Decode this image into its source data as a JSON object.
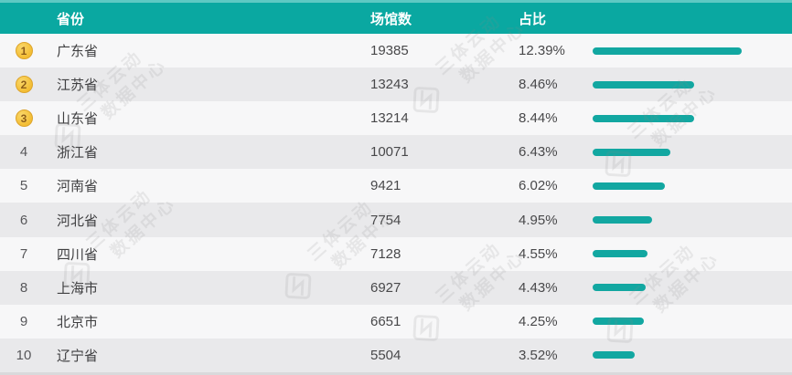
{
  "header": {
    "columns": [
      {
        "label": "省份"
      },
      {
        "label": "场馆数"
      },
      {
        "label": "占比"
      }
    ]
  },
  "rows": [
    {
      "rank": "1",
      "medal": true,
      "province": "广东省",
      "venues": "19385",
      "share": "12.39%",
      "share_value": 12.39
    },
    {
      "rank": "2",
      "medal": true,
      "province": "江苏省",
      "venues": "13243",
      "share": "8.46%",
      "share_value": 8.46
    },
    {
      "rank": "3",
      "medal": true,
      "province": "山东省",
      "venues": "13214",
      "share": "8.44%",
      "share_value": 8.44
    },
    {
      "rank": "4",
      "medal": false,
      "province": "浙江省",
      "venues": "10071",
      "share": "6.43%",
      "share_value": 6.43
    },
    {
      "rank": "5",
      "medal": false,
      "province": "河南省",
      "venues": "9421",
      "share": "6.02%",
      "share_value": 6.02
    },
    {
      "rank": "6",
      "medal": false,
      "province": "河北省",
      "venues": "7754",
      "share": "4.95%",
      "share_value": 4.95
    },
    {
      "rank": "7",
      "medal": false,
      "province": "四川省",
      "venues": "7128",
      "share": "4.55%",
      "share_value": 4.55
    },
    {
      "rank": "8",
      "medal": false,
      "province": "上海市",
      "venues": "6927",
      "share": "4.43%",
      "share_value": 4.43
    },
    {
      "rank": "9",
      "medal": false,
      "province": "北京市",
      "venues": "6651",
      "share": "4.25%",
      "share_value": 4.25
    },
    {
      "rank": "10",
      "medal": false,
      "province": "辽宁省",
      "venues": "5504",
      "share": "3.52%",
      "share_value": 3.52
    }
  ],
  "watermark": {
    "line1": "三体云动",
    "line2": "数据中心"
  },
  "colors": {
    "header_teal": "#0aa8a1",
    "bar_teal": "#12a7a1",
    "medal_gold": "#f3bd33",
    "row_light": "#f7f7f8",
    "row_gray": "#e9e9eb"
  },
  "chart_data": {
    "type": "bar",
    "orientation": "horizontal",
    "title": "",
    "columns": [
      "省份",
      "场馆数",
      "占比"
    ],
    "categories": [
      "广东省",
      "江苏省",
      "山东省",
      "浙江省",
      "河南省",
      "河北省",
      "四川省",
      "上海市",
      "北京市",
      "辽宁省"
    ],
    "series": [
      {
        "name": "场馆数",
        "values": [
          19385,
          13243,
          13214,
          10071,
          9421,
          7754,
          7128,
          6927,
          6651,
          5504
        ]
      },
      {
        "name": "占比(%)",
        "values": [
          12.39,
          8.46,
          8.44,
          6.43,
          6.02,
          4.95,
          4.55,
          4.43,
          4.25,
          3.52
        ]
      }
    ],
    "ranks": [
      1,
      2,
      3,
      4,
      5,
      6,
      7,
      8,
      9,
      10
    ],
    "legend": false,
    "grid": false,
    "bar_color": "#12a7a1",
    "watermark_text": "三体云动 数据中心"
  }
}
